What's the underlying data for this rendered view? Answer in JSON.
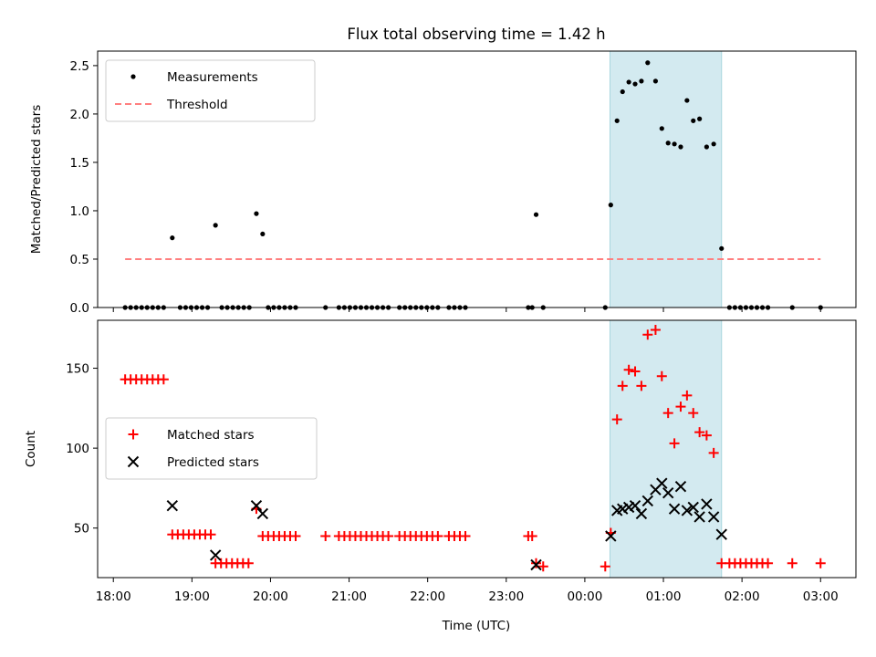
{
  "chart_data": {
    "title": "Flux total observing time = 1.42 h",
    "xlabel": "Time (UTC)",
    "x_unit": "hours since 18:00 UTC",
    "xlim": [
      -0.2,
      9.45
    ],
    "xticks": [
      {
        "value": 0,
        "label": "18:00"
      },
      {
        "value": 1,
        "label": "19:00"
      },
      {
        "value": 2,
        "label": "20:00"
      },
      {
        "value": 3,
        "label": "21:00"
      },
      {
        "value": 4,
        "label": "22:00"
      },
      {
        "value": 5,
        "label": "23:00"
      },
      {
        "value": 6,
        "label": "00:00"
      },
      {
        "value": 7,
        "label": "01:00"
      },
      {
        "value": 8,
        "label": "02:00"
      },
      {
        "value": 9,
        "label": "03:00"
      }
    ],
    "highlight_span": {
      "x0": 6.32,
      "x1": 7.74,
      "color": "#d3eaf0"
    },
    "panels": [
      {
        "type": "scatter",
        "ylabel": "Matched/Predicted stars",
        "ylim": [
          0,
          2.65
        ],
        "yticks": [
          {
            "value": 0,
            "label": "0.0"
          },
          {
            "value": 0.5,
            "label": "0.5"
          },
          {
            "value": 1.0,
            "label": "1.0"
          },
          {
            "value": 1.5,
            "label": "1.5"
          },
          {
            "value": 2.0,
            "label": "2.0"
          },
          {
            "value": 2.5,
            "label": "2.5"
          }
        ],
        "legend": {
          "position": "upper-left",
          "entries": [
            "Measurements",
            "Threshold"
          ]
        },
        "series": [
          {
            "name": "Measurements",
            "marker": "dot",
            "color": "#000000",
            "points": [
              [
                0.15,
                0
              ],
              [
                0.22,
                0
              ],
              [
                0.29,
                0
              ],
              [
                0.36,
                0
              ],
              [
                0.43,
                0
              ],
              [
                0.5,
                0
              ],
              [
                0.57,
                0
              ],
              [
                0.64,
                0
              ],
              [
                0.75,
                0.72
              ],
              [
                0.85,
                0
              ],
              [
                0.92,
                0
              ],
              [
                0.99,
                0
              ],
              [
                1.06,
                0
              ],
              [
                1.13,
                0
              ],
              [
                1.2,
                0
              ],
              [
                1.3,
                0.85
              ],
              [
                1.38,
                0
              ],
              [
                1.45,
                0
              ],
              [
                1.52,
                0
              ],
              [
                1.59,
                0
              ],
              [
                1.66,
                0
              ],
              [
                1.73,
                0
              ],
              [
                1.82,
                0.97
              ],
              [
                1.9,
                0.76
              ],
              [
                1.97,
                0
              ],
              [
                2.04,
                0
              ],
              [
                2.11,
                0
              ],
              [
                2.18,
                0
              ],
              [
                2.25,
                0
              ],
              [
                2.32,
                0
              ],
              [
                2.7,
                0
              ],
              [
                2.87,
                0
              ],
              [
                2.94,
                0
              ],
              [
                3.01,
                0
              ],
              [
                3.08,
                0
              ],
              [
                3.15,
                0
              ],
              [
                3.22,
                0
              ],
              [
                3.29,
                0
              ],
              [
                3.36,
                0
              ],
              [
                3.43,
                0
              ],
              [
                3.5,
                0
              ],
              [
                3.64,
                0
              ],
              [
                3.71,
                0
              ],
              [
                3.78,
                0
              ],
              [
                3.85,
                0
              ],
              [
                3.92,
                0
              ],
              [
                3.99,
                0
              ],
              [
                4.06,
                0
              ],
              [
                4.13,
                0
              ],
              [
                4.27,
                0
              ],
              [
                4.34,
                0
              ],
              [
                4.41,
                0
              ],
              [
                4.48,
                0
              ],
              [
                5.28,
                0
              ],
              [
                5.33,
                0
              ],
              [
                5.38,
                0.96
              ],
              [
                5.47,
                0
              ],
              [
                6.26,
                0
              ],
              [
                6.33,
                1.06
              ],
              [
                6.41,
                1.93
              ],
              [
                6.48,
                2.23
              ],
              [
                6.56,
                2.33
              ],
              [
                6.64,
                2.31
              ],
              [
                6.72,
                2.34
              ],
              [
                6.8,
                2.53
              ],
              [
                6.9,
                2.34
              ],
              [
                6.98,
                1.85
              ],
              [
                7.06,
                1.7
              ],
              [
                7.14,
                1.69
              ],
              [
                7.22,
                1.66
              ],
              [
                7.3,
                2.14
              ],
              [
                7.38,
                1.93
              ],
              [
                7.46,
                1.95
              ],
              [
                7.55,
                1.66
              ],
              [
                7.64,
                1.69
              ],
              [
                7.74,
                0.61
              ],
              [
                7.84,
                0
              ],
              [
                7.91,
                0
              ],
              [
                7.98,
                0
              ],
              [
                8.05,
                0
              ],
              [
                8.12,
                0
              ],
              [
                8.19,
                0
              ],
              [
                8.26,
                0
              ],
              [
                8.33,
                0
              ],
              [
                8.64,
                0
              ],
              [
                9.0,
                0
              ]
            ]
          },
          {
            "name": "Threshold",
            "marker": "dashed-line",
            "color": "#ff7f7f",
            "points": [
              [
                0.15,
                0.5
              ],
              [
                9.0,
                0.5
              ]
            ]
          }
        ]
      },
      {
        "type": "scatter",
        "ylabel": "Count",
        "ylim": [
          19,
          180
        ],
        "yticks": [
          {
            "value": 50,
            "label": "50"
          },
          {
            "value": 100,
            "label": "100"
          },
          {
            "value": 150,
            "label": "150"
          }
        ],
        "legend": {
          "position": "center-left",
          "entries": [
            "Matched stars",
            "Predicted stars"
          ]
        },
        "series": [
          {
            "name": "Matched stars",
            "marker": "plus",
            "color": "#ff0000",
            "points": [
              [
                0.15,
                143
              ],
              [
                0.22,
                143
              ],
              [
                0.29,
                143
              ],
              [
                0.36,
                143
              ],
              [
                0.43,
                143
              ],
              [
                0.5,
                143
              ],
              [
                0.57,
                143
              ],
              [
                0.64,
                143
              ],
              [
                0.75,
                46
              ],
              [
                0.82,
                46
              ],
              [
                0.89,
                46
              ],
              [
                0.96,
                46
              ],
              [
                1.03,
                46
              ],
              [
                1.1,
                46
              ],
              [
                1.17,
                46
              ],
              [
                1.24,
                46
              ],
              [
                1.3,
                28
              ],
              [
                1.37,
                28
              ],
              [
                1.44,
                28
              ],
              [
                1.51,
                28
              ],
              [
                1.58,
                28
              ],
              [
                1.65,
                28
              ],
              [
                1.72,
                28
              ],
              [
                1.82,
                62
              ],
              [
                1.9,
                45
              ],
              [
                1.97,
                45
              ],
              [
                2.04,
                45
              ],
              [
                2.11,
                45
              ],
              [
                2.18,
                45
              ],
              [
                2.25,
                45
              ],
              [
                2.32,
                45
              ],
              [
                2.7,
                45
              ],
              [
                2.87,
                45
              ],
              [
                2.94,
                45
              ],
              [
                3.01,
                45
              ],
              [
                3.08,
                45
              ],
              [
                3.15,
                45
              ],
              [
                3.22,
                45
              ],
              [
                3.29,
                45
              ],
              [
                3.36,
                45
              ],
              [
                3.43,
                45
              ],
              [
                3.5,
                45
              ],
              [
                3.64,
                45
              ],
              [
                3.71,
                45
              ],
              [
                3.78,
                45
              ],
              [
                3.85,
                45
              ],
              [
                3.92,
                45
              ],
              [
                3.99,
                45
              ],
              [
                4.06,
                45
              ],
              [
                4.13,
                45
              ],
              [
                4.27,
                45
              ],
              [
                4.34,
                45
              ],
              [
                4.41,
                45
              ],
              [
                4.48,
                45
              ],
              [
                5.28,
                45
              ],
              [
                5.33,
                45
              ],
              [
                5.38,
                28
              ],
              [
                5.47,
                26
              ],
              [
                6.26,
                26
              ],
              [
                6.33,
                47
              ],
              [
                6.41,
                118
              ],
              [
                6.48,
                139
              ],
              [
                6.56,
                149
              ],
              [
                6.64,
                148
              ],
              [
                6.72,
                139
              ],
              [
                6.8,
                171
              ],
              [
                6.9,
                174
              ],
              [
                6.98,
                145
              ],
              [
                7.06,
                122
              ],
              [
                7.14,
                103
              ],
              [
                7.22,
                126
              ],
              [
                7.3,
                133
              ],
              [
                7.38,
                122
              ],
              [
                7.46,
                110
              ],
              [
                7.55,
                108
              ],
              [
                7.64,
                97
              ],
              [
                7.74,
                28
              ],
              [
                7.84,
                28
              ],
              [
                7.91,
                28
              ],
              [
                7.98,
                28
              ],
              [
                8.05,
                28
              ],
              [
                8.12,
                28
              ],
              [
                8.19,
                28
              ],
              [
                8.26,
                28
              ],
              [
                8.33,
                28
              ],
              [
                8.64,
                28
              ],
              [
                9.0,
                28
              ]
            ]
          },
          {
            "name": "Predicted stars",
            "marker": "x",
            "color": "#000000",
            "points": [
              [
                0.75,
                64
              ],
              [
                1.3,
                33
              ],
              [
                1.82,
                64
              ],
              [
                1.9,
                59
              ],
              [
                5.38,
                27
              ],
              [
                6.33,
                45
              ],
              [
                6.41,
                61
              ],
              [
                6.48,
                62
              ],
              [
                6.56,
                63
              ],
              [
                6.64,
                64
              ],
              [
                6.72,
                59
              ],
              [
                6.8,
                67
              ],
              [
                6.9,
                74
              ],
              [
                6.98,
                78
              ],
              [
                7.06,
                72
              ],
              [
                7.14,
                62
              ],
              [
                7.22,
                76
              ],
              [
                7.3,
                61
              ],
              [
                7.38,
                63
              ],
              [
                7.46,
                57
              ],
              [
                7.55,
                65
              ],
              [
                7.64,
                57
              ],
              [
                7.74,
                46
              ]
            ]
          }
        ]
      }
    ]
  }
}
